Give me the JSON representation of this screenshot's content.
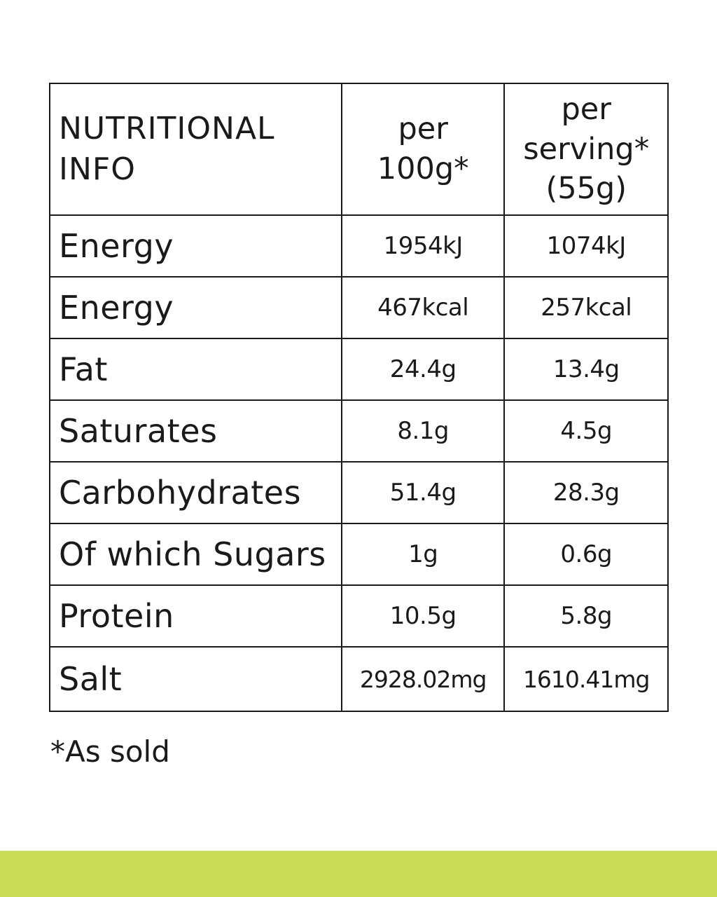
{
  "table": {
    "header": {
      "label_line1": "NUTRITIONAL",
      "label_line2": "INFO",
      "per100_line1": "per",
      "per100_line2": "100g*",
      "serving_line1": "per",
      "serving_line2": "serving*",
      "serving_line3": "(55g)"
    },
    "rows": [
      {
        "label": "Energy",
        "per100": "1954kJ",
        "serving": "1074kJ"
      },
      {
        "label": "Energy",
        "per100": "467kcal",
        "serving": "257kcal"
      },
      {
        "label": "Fat",
        "per100": "24.4g",
        "serving": "13.4g"
      },
      {
        "label": "Saturates",
        "per100": "8.1g",
        "serving": "4.5g"
      },
      {
        "label": "Carbohydrates",
        "per100": "51.4g",
        "serving": "28.3g"
      },
      {
        "label": "Of which Sugars",
        "per100": "1g",
        "serving": "0.6g"
      },
      {
        "label": "Protein",
        "per100": "10.5g",
        "serving": "5.8g"
      },
      {
        "label": "Salt",
        "per100": "2928.02mg",
        "serving": "1610.41mg"
      }
    ]
  },
  "footnote": "*As sold",
  "colors": {
    "accent_bar": "#c9dd58",
    "border": "#1a1a1a"
  }
}
